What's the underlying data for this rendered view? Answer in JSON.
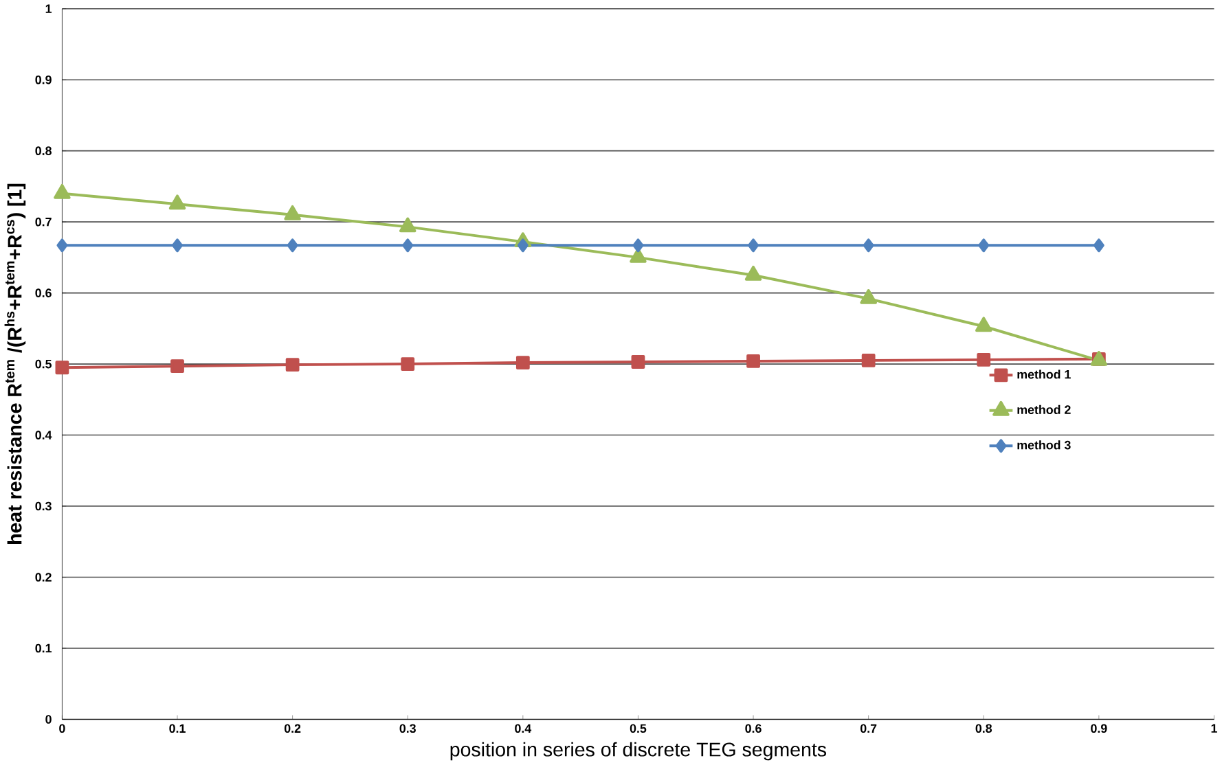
{
  "chart_data": {
    "type": "line",
    "xlabel": "position in series of discrete TEG segments",
    "ylabel": "heat resistance R$^{tem}$ /(R$^{hs}$+R$^{tem}$+R$^{cs}$)  [1]",
    "x": [
      0,
      0.1,
      0.2,
      0.3,
      0.4,
      0.5,
      0.6,
      0.7,
      0.8,
      0.9
    ],
    "series": [
      {
        "name": "method 1",
        "color": "#c0504d",
        "marker": "square",
        "values": [
          0.495,
          0.497,
          0.499,
          0.5,
          0.502,
          0.503,
          0.504,
          0.505,
          0.506,
          0.507
        ]
      },
      {
        "name": "method 2",
        "color": "#9bbb59",
        "marker": "triangle",
        "values": [
          0.74,
          0.725,
          0.71,
          0.693,
          0.672,
          0.65,
          0.625,
          0.592,
          0.553,
          0.505
        ]
      },
      {
        "name": "method 3",
        "color": "#4f81bd",
        "marker": "diamond",
        "values": [
          0.667,
          0.667,
          0.667,
          0.667,
          0.667,
          0.667,
          0.667,
          0.667,
          0.667,
          0.667
        ]
      }
    ],
    "xlim": [
      0,
      1
    ],
    "ylim": [
      0,
      1
    ],
    "xticks": [
      0,
      0.1,
      0.2,
      0.3,
      0.4,
      0.5,
      0.6,
      0.7,
      0.8,
      0.9,
      1
    ],
    "yticks": [
      0,
      0.1,
      0.2,
      0.3,
      0.4,
      0.5,
      0.6,
      0.7,
      0.8,
      0.9,
      1
    ],
    "grid": "y",
    "legend": "right",
    "line_style": "solid"
  }
}
